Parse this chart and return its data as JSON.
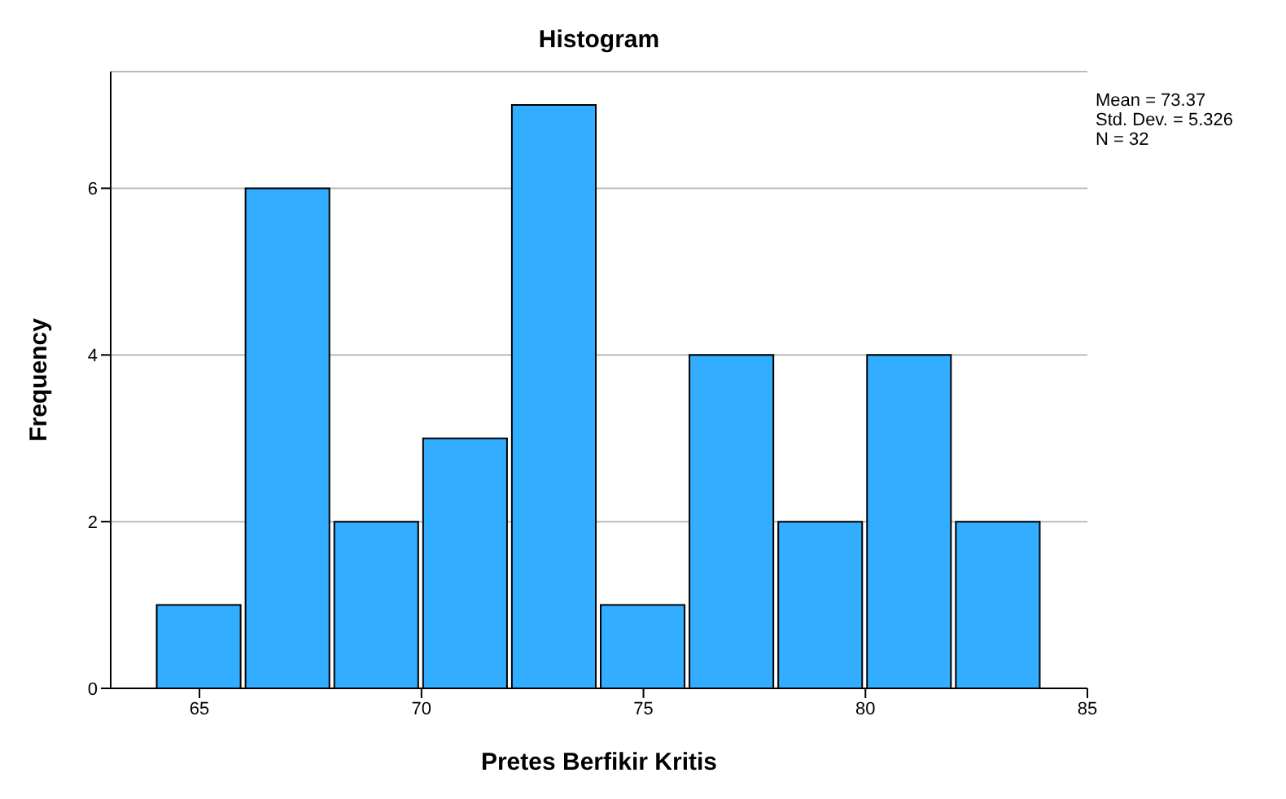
{
  "chart_data": {
    "type": "histogram",
    "title": "Histogram",
    "xlabel": "Pretes Berfikir Kritis",
    "ylabel": "Frequency",
    "bins": [
      64,
      66,
      68,
      70,
      72,
      74,
      76,
      78,
      80,
      82,
      84
    ],
    "values": [
      1,
      6,
      2,
      3,
      7,
      1,
      4,
      2,
      4,
      2
    ],
    "color": "#33adff",
    "xlim": [
      63,
      85
    ],
    "xticks": [
      65,
      70,
      75,
      80,
      85
    ],
    "ylim": [
      0,
      7.4
    ],
    "yticks": [
      0,
      2,
      4,
      6
    ],
    "grid": "y",
    "annotations": [
      "Mean = 73.37",
      "Std. Dev. = 5.326",
      "N = 32"
    ]
  }
}
